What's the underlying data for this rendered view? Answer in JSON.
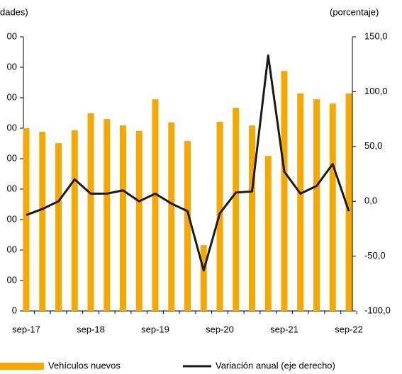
{
  "chart_data": {
    "type": "bar-line",
    "y_axis_label": "dades)",
    "y2_axis_label": "(porcentaje)",
    "categories": [
      "sep-17",
      null,
      null,
      null,
      "sep-18",
      null,
      null,
      null,
      "sep-19",
      null,
      null,
      null,
      "sep-20",
      null,
      null,
      null,
      "sep-21",
      null,
      null,
      null,
      "sep-22"
    ],
    "series": [
      {
        "name": "Vehículos nuevos",
        "color": "#f5a800",
        "kind": "bar",
        "values": [
          600,
          588,
          551,
          593,
          649,
          630,
          609,
          591,
          695,
          619,
          558,
          216,
          621,
          667,
          609,
          509,
          788,
          714,
          695,
          681,
          714
        ]
      },
      {
        "name": "Variación anual (eje derecho)",
        "color": "#1a1a1a",
        "kind": "line",
        "axis": "y2",
        "values": [
          -12.5,
          -7,
          0,
          20,
          7,
          7,
          10,
          0,
          7,
          -2,
          -9,
          -63,
          -11,
          8,
          9,
          133,
          27,
          7,
          14,
          34,
          -9
        ]
      }
    ],
    "ylim": [
      0,
      900
    ],
    "yticks": [
      0,
      {
        "value": 100,
        "label": "00"
      },
      {
        "value": 200,
        "label": "00"
      },
      {
        "value": 300,
        "label": "00"
      },
      {
        "value": 400,
        "label": "00"
      },
      {
        "value": 500,
        "label": "00"
      },
      {
        "value": 600,
        "label": "00"
      },
      {
        "value": 700,
        "label": "00"
      },
      {
        "value": 800,
        "label": "00"
      },
      {
        "value": 900,
        "label": "00"
      }
    ],
    "y2lim": [
      -100,
      150
    ],
    "y2ticks": [
      {
        "value": -100,
        "label": "-100,0"
      },
      {
        "value": -50,
        "label": "-50,0"
      },
      {
        "value": 0,
        "label": "0,0"
      },
      {
        "value": 50,
        "label": "50,0"
      },
      {
        "value": 100,
        "label": "100,0"
      },
      {
        "value": 150,
        "label": "150,0"
      }
    ],
    "grid": false
  }
}
